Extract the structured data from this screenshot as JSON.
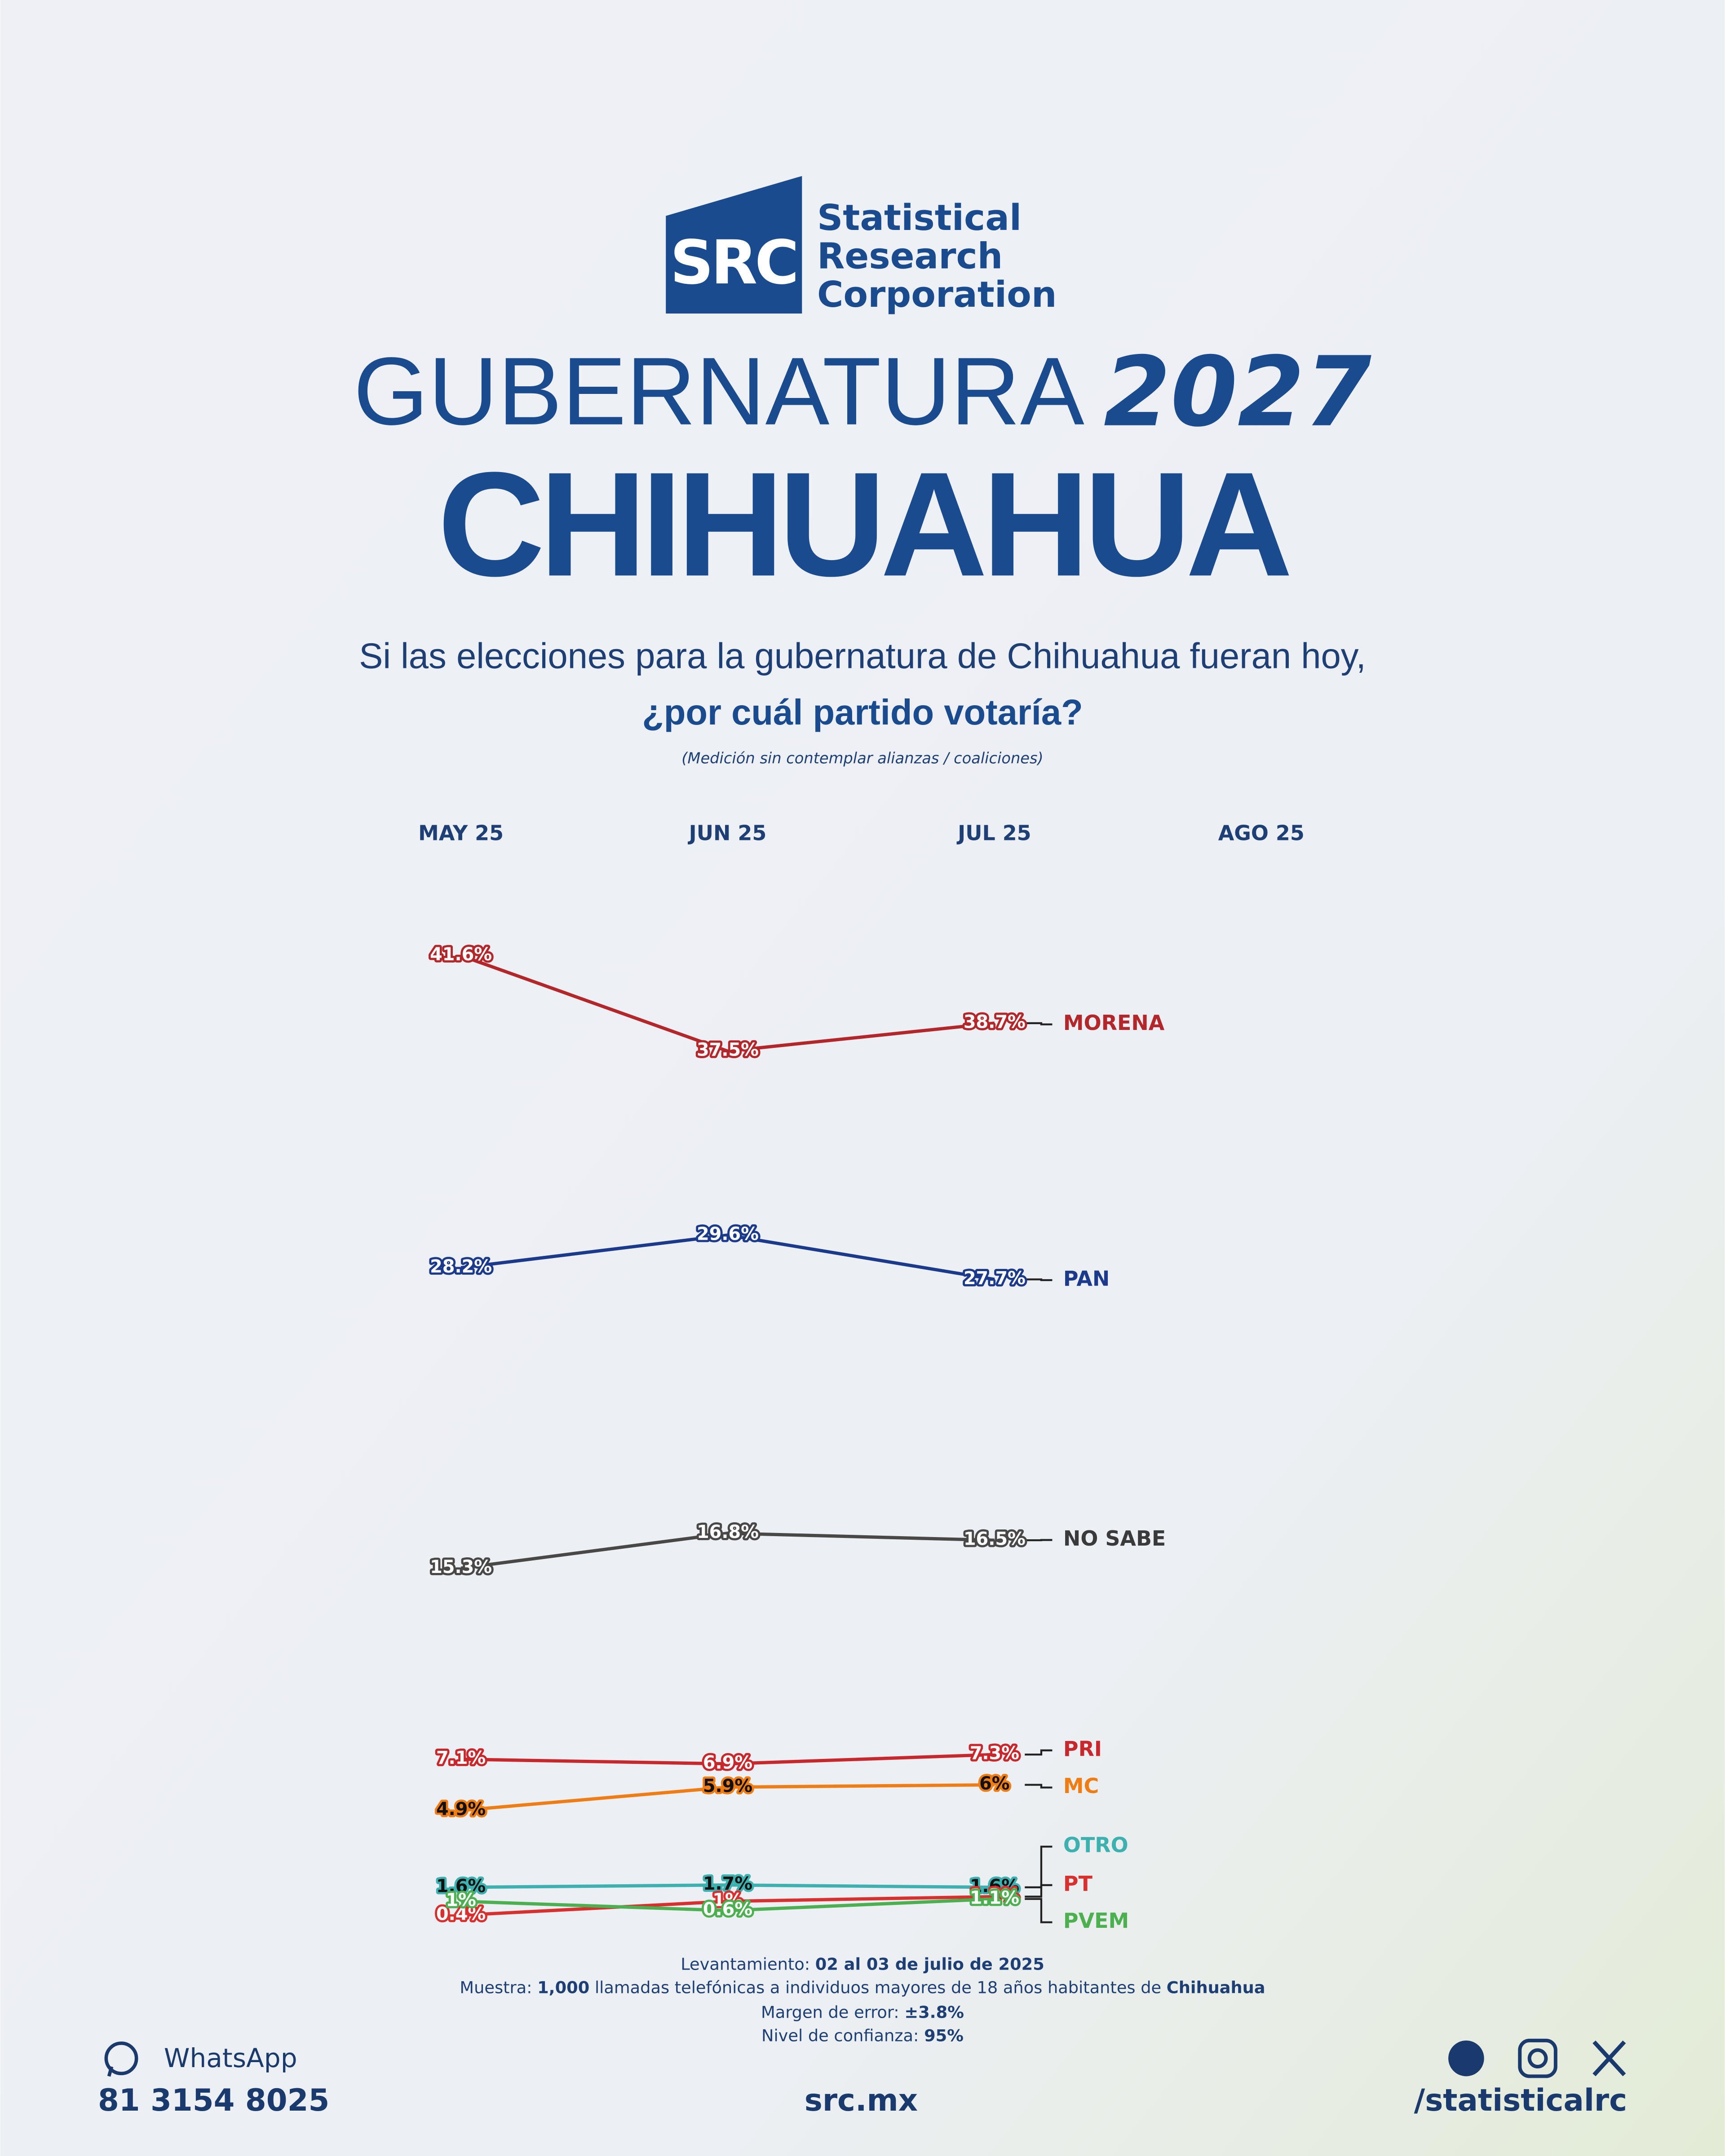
{
  "header": {
    "logo_mark": "SRC",
    "logo_lines": [
      "Statistical",
      "Research",
      "Corporation"
    ],
    "title_light": "GUBERNATURA",
    "title_bold": "2027",
    "state": "CHIHUAHUA",
    "question_1": "Si las elecciones para la gubernatura de Chihuahua fueran hoy,",
    "question_2": "¿por cuál partido votaría?",
    "note": "(Medición sin contemplar alianzas / coaliciones)"
  },
  "chart_data": {
    "type": "line",
    "categories": [
      "MAY 25",
      "JUN 25",
      "JUL 25",
      "AGO 25"
    ],
    "series": [
      {
        "name": "MORENA",
        "color": "#b3262a",
        "values": [
          41.6,
          37.5,
          38.7,
          null
        ],
        "value_labels": [
          "41.6%",
          "37.5%",
          "38.7%",
          null
        ]
      },
      {
        "name": "PAN",
        "color": "#1b3a8c",
        "values": [
          28.2,
          29.6,
          27.7,
          null
        ],
        "value_labels": [
          "28.2%",
          "29.6%",
          "27.7%",
          null
        ]
      },
      {
        "name": "NO SABE",
        "color": "#4a4747",
        "values": [
          15.3,
          16.8,
          16.5,
          null
        ],
        "value_labels": [
          "15.3%",
          "16.8%",
          "16.5%",
          null
        ]
      },
      {
        "name": "PRI",
        "color": "#c8282b",
        "values": [
          7.1,
          6.9,
          7.3,
          null
        ],
        "value_labels": [
          "7.1%",
          "6.9%",
          "7.3%",
          null
        ]
      },
      {
        "name": "MC",
        "color": "#f07d14",
        "values": [
          4.9,
          5.9,
          6,
          null
        ],
        "value_labels": [
          "4.9%",
          "5.9%",
          "6%",
          null
        ]
      },
      {
        "name": "OTRO",
        "color": "#3cb1b0",
        "values": [
          1.6,
          1.7,
          1.6,
          null
        ],
        "value_labels": [
          "1.6%",
          "1.7%",
          "1.6%",
          null
        ]
      },
      {
        "name": "PT",
        "color": "#d8302f",
        "values": [
          0.4,
          1,
          1.2,
          null
        ],
        "value_labels": [
          "0.4%",
          "1%",
          "1.2%",
          null
        ]
      },
      {
        "name": "PVEM",
        "color": "#4caf50",
        "values": [
          1,
          0.6,
          1.1,
          null
        ],
        "value_labels": [
          "1%",
          "0.6%",
          "1.1%",
          null
        ]
      }
    ]
  },
  "footer": {
    "fieldwork": [
      "Levantamiento: ",
      "02 al 03 de julio de 2025"
    ],
    "sample": [
      "Muestra: ",
      "1,000",
      " llamadas telefónicas a individuos mayores de 18 años habitantes de ",
      "Chihuahua"
    ],
    "margin": [
      "Margen de error: ",
      "±3.8%"
    ],
    "confidence": [
      "Nivel de confianza: ",
      "95%"
    ],
    "whatsapp": "WhatsApp",
    "phone": "81 3154 8025",
    "site": "src.mx",
    "handle": "/statisticalrc"
  }
}
